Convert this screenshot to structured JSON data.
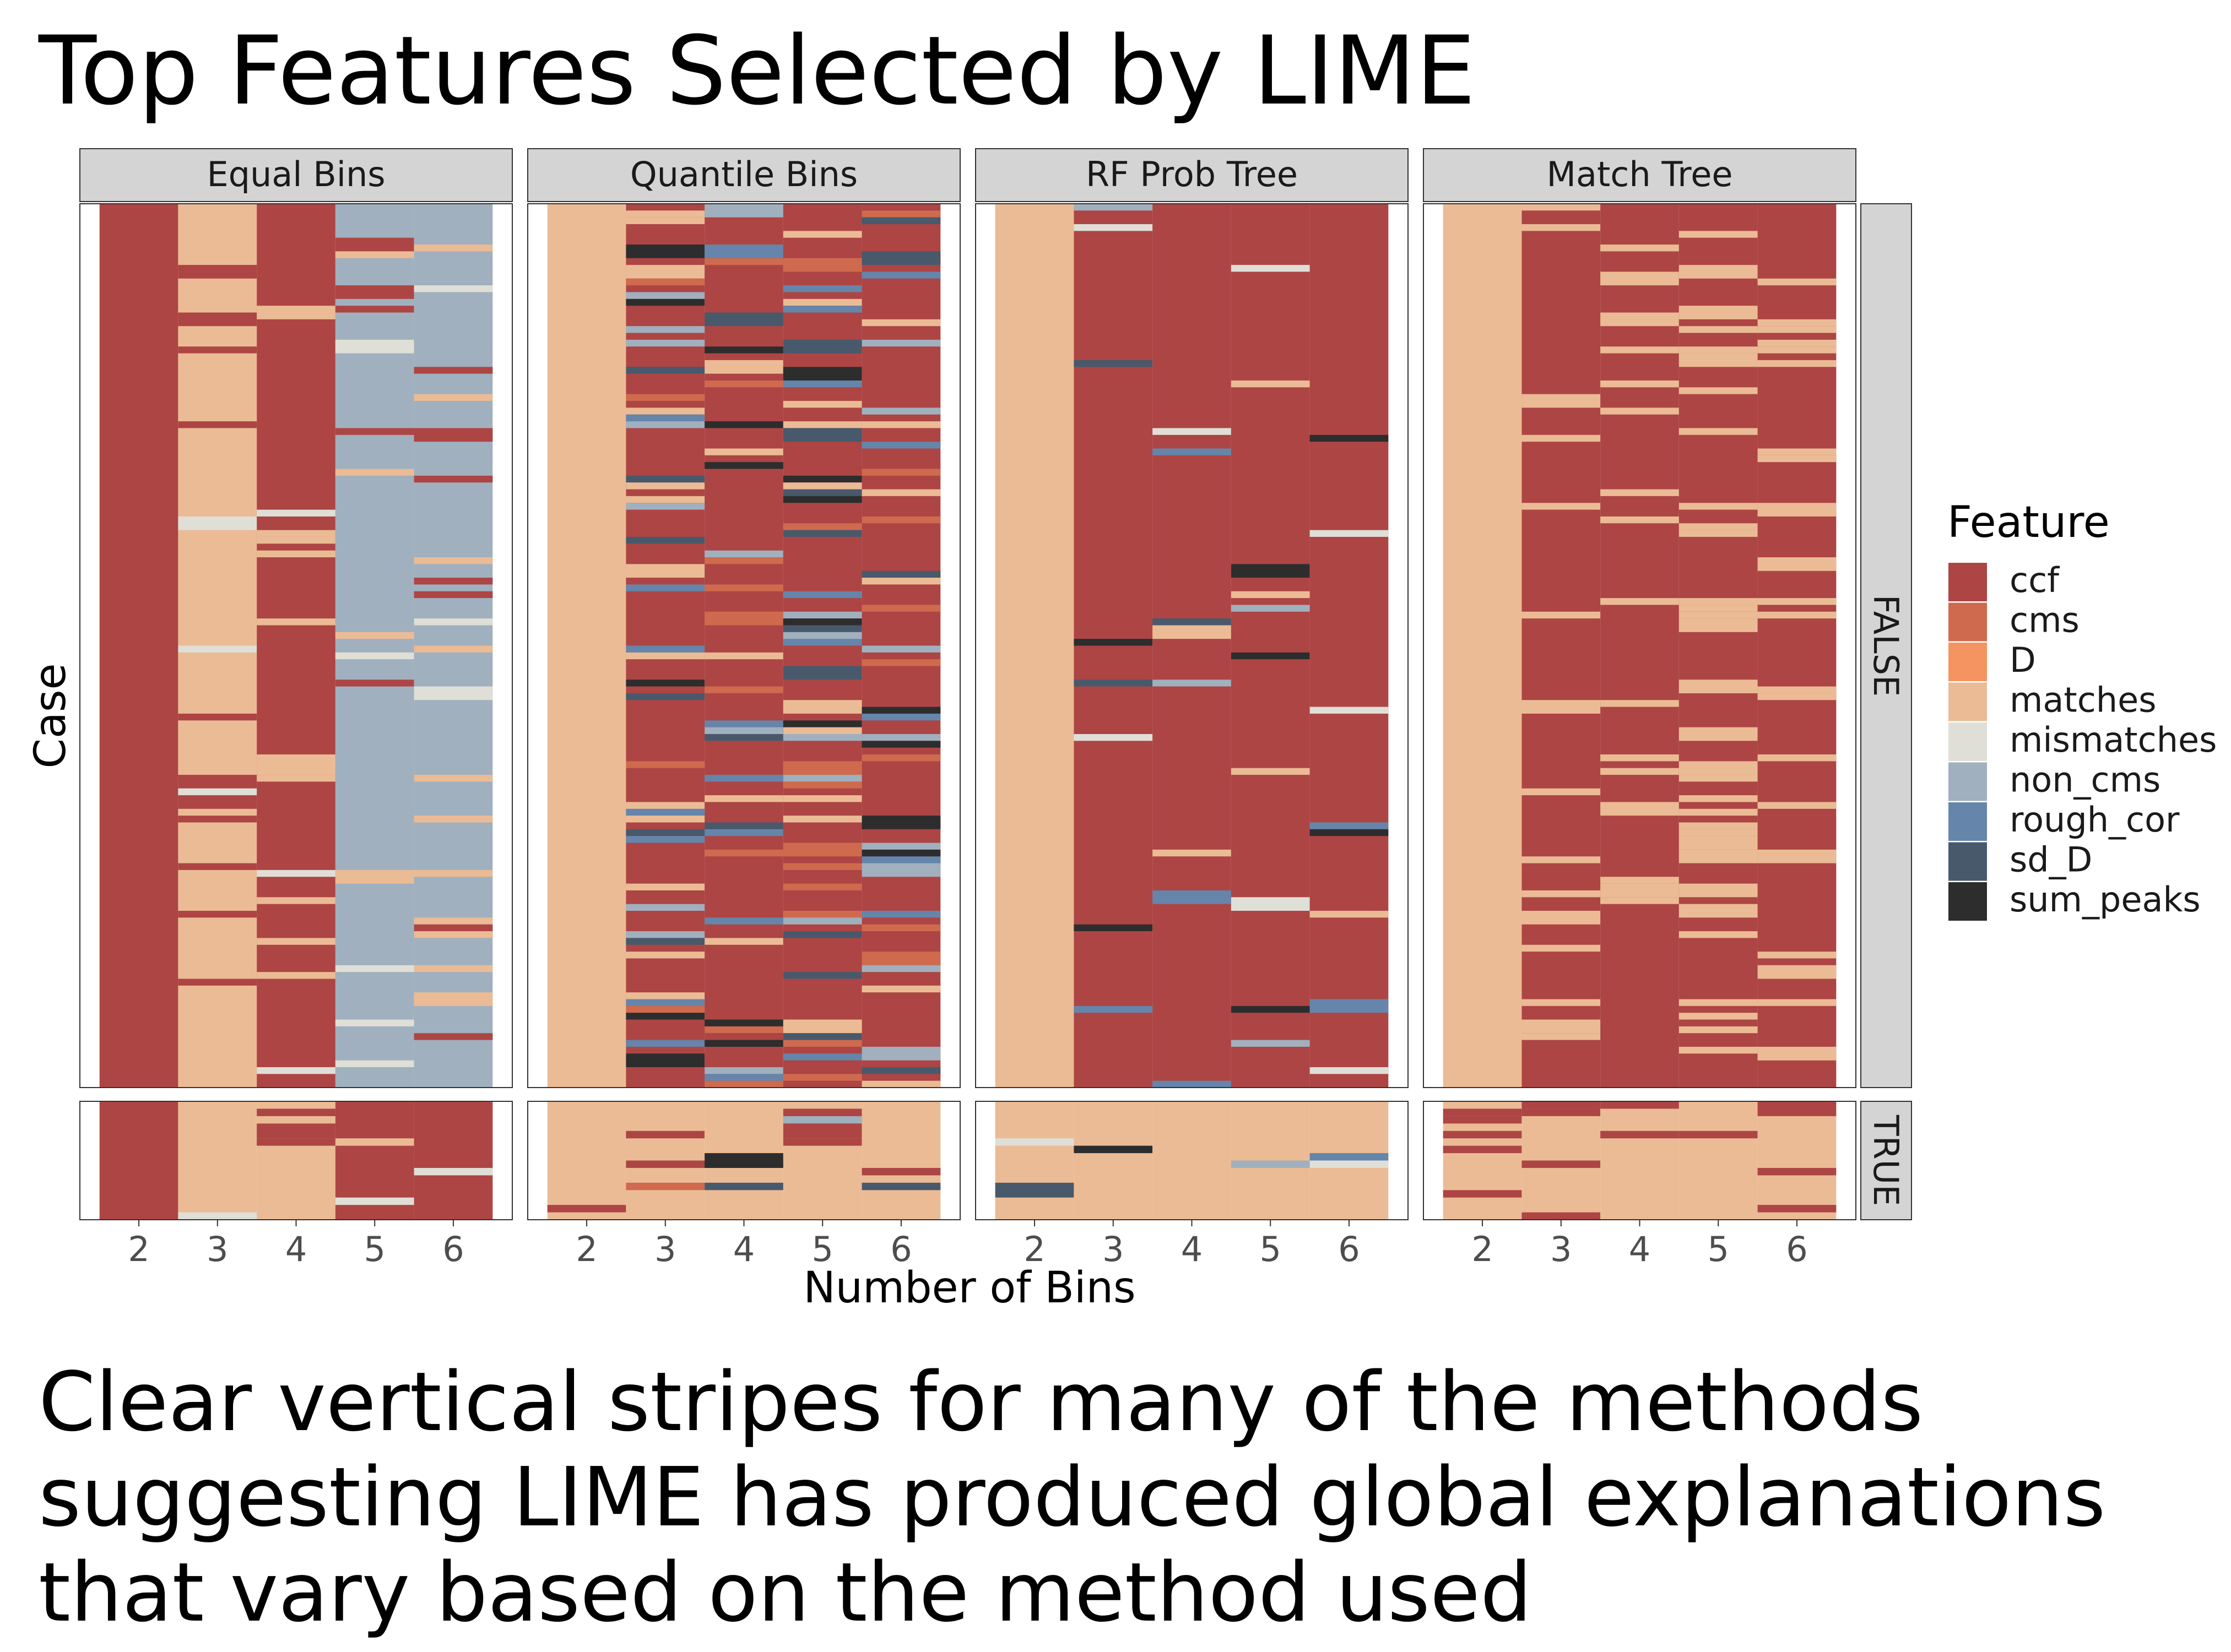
{
  "title": "Top Features Selected by LIME",
  "caption": [
    "Clear vertical stripes for many of the methods",
    "suggesting LIME has produced global explanations",
    "that vary based on the method used"
  ],
  "chart_data": {
    "type": "heatmap",
    "xlabel": "Number of Bins",
    "ylabel": "Case",
    "x": [
      2,
      3,
      4,
      5,
      6
    ],
    "facet_columns": [
      "Equal Bins",
      "Quantile Bins",
      "RF Prob Tree",
      "Match Tree"
    ],
    "facet_rows": [
      "FALSE",
      "TRUE"
    ],
    "legend": {
      "title": "Feature",
      "position": "right",
      "entries": [
        {
          "name": "ccf",
          "color": "#ad4544"
        },
        {
          "name": "cms",
          "color": "#cf6a4e"
        },
        {
          "name": "D",
          "color": "#f59460"
        },
        {
          "name": "matches",
          "color": "#ebbb95"
        },
        {
          "name": "mismatches",
          "color": "#dfdfd7"
        },
        {
          "name": "non_cms",
          "color": "#a0b0be"
        },
        {
          "name": "rough_cor",
          "color": "#6585ab"
        },
        {
          "name": "sd_D",
          "color": "#48596c"
        },
        {
          "name": "sum_peaks",
          "color": "#2d2d2d"
        }
      ]
    },
    "panel_summaries": {
      "Equal Bins": {
        "FALSE": {
          "2": "ccf",
          "3": "matches",
          "4": "ccf",
          "5": "non_cms",
          "6": "non_cms"
        },
        "TRUE": {
          "2": "ccf",
          "3": "matches",
          "4": "matches",
          "5": "ccf",
          "6": "ccf"
        }
      },
      "Quantile Bins": {
        "FALSE": {
          "2": "matches",
          "3": "ccf",
          "4": "ccf",
          "5": "ccf",
          "6": "ccf"
        },
        "TRUE": {
          "2": "matches",
          "3": "matches",
          "4": "matches",
          "5": "matches",
          "6": "matches"
        }
      },
      "RF Prob Tree": {
        "FALSE": {
          "2": "matches",
          "3": "ccf",
          "4": "ccf",
          "5": "ccf",
          "6": "ccf"
        },
        "TRUE": {
          "2": "matches",
          "3": "matches",
          "4": "matches",
          "5": "matches",
          "6": "matches"
        }
      },
      "Match Tree": {
        "FALSE": {
          "2": "matches",
          "3": "ccf",
          "4": "ccf",
          "5": "ccf",
          "6": "ccf"
        },
        "TRUE": {
          "2": "matches",
          "3": "matches",
          "4": "matches",
          "5": "matches",
          "6": "matches"
        }
      }
    }
  }
}
